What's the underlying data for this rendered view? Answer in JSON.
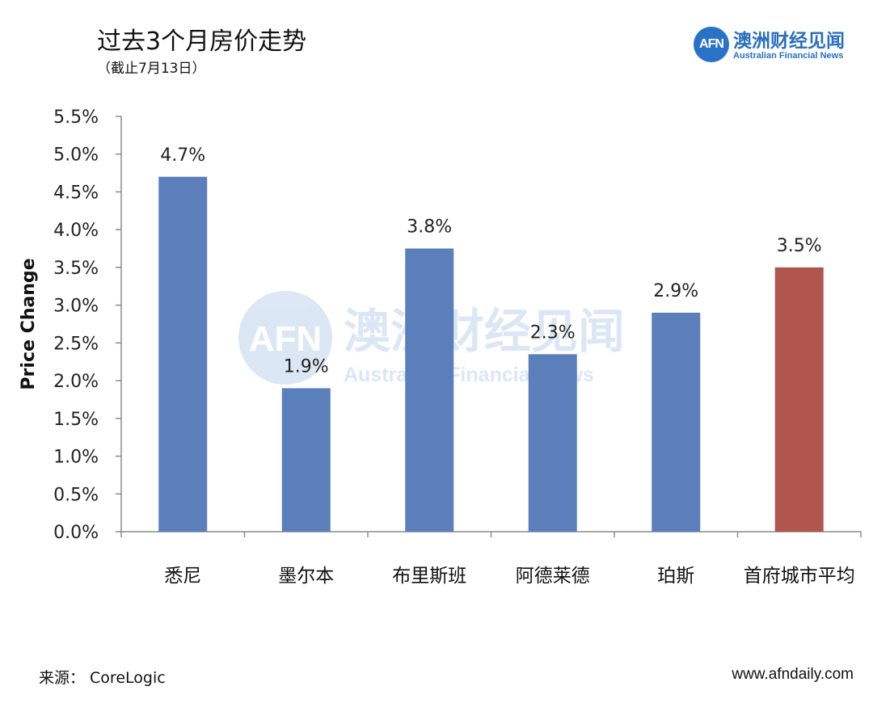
{
  "header": {
    "title": "过去3个月房价走势",
    "subtitle": "（截止7月13日）"
  },
  "logo": {
    "mark": "AFN",
    "name_cn": "澳洲财经见闻",
    "name_en": "Australian Financial News"
  },
  "watermark": {
    "mark": "AFN",
    "name_cn": "澳洲财经见闻",
    "name_en": "Australian Financial News"
  },
  "chart_data": {
    "type": "bar",
    "title": "过去3个月房价走势",
    "subtitle": "（截止7月13日）",
    "xlabel": "",
    "ylabel": "Price Change",
    "categories": [
      "悉尼",
      "墨尔本",
      "布里斯班",
      "阿德莱德",
      "珀斯",
      "首府城市平均"
    ],
    "values": [
      4.7,
      1.9,
      3.75,
      2.35,
      2.9,
      3.5
    ],
    "data_labels": [
      "4.7%",
      "1.9%",
      "3.8%",
      "2.3%",
      "2.9%",
      "3.5%"
    ],
    "ylim": [
      0,
      5.5
    ],
    "yticks": [
      0,
      0.5,
      1.0,
      1.5,
      2.0,
      2.5,
      3.0,
      3.5,
      4.0,
      4.5,
      5.0,
      5.5
    ],
    "ytick_labels": [
      "0.0%",
      "0.5%",
      "1.0%",
      "1.5%",
      "2.0%",
      "2.5%",
      "3.0%",
      "3.5%",
      "4.0%",
      "4.5%",
      "5.0%",
      "5.5%"
    ],
    "bar_colors": [
      "#5b7fba",
      "#5b7fba",
      "#5b7fba",
      "#5b7fba",
      "#5b7fba",
      "#b0564e"
    ],
    "grid": false,
    "legend": "none"
  },
  "footer": {
    "source": "来源：  CoreLogic",
    "website": "www.afndaily.com"
  }
}
